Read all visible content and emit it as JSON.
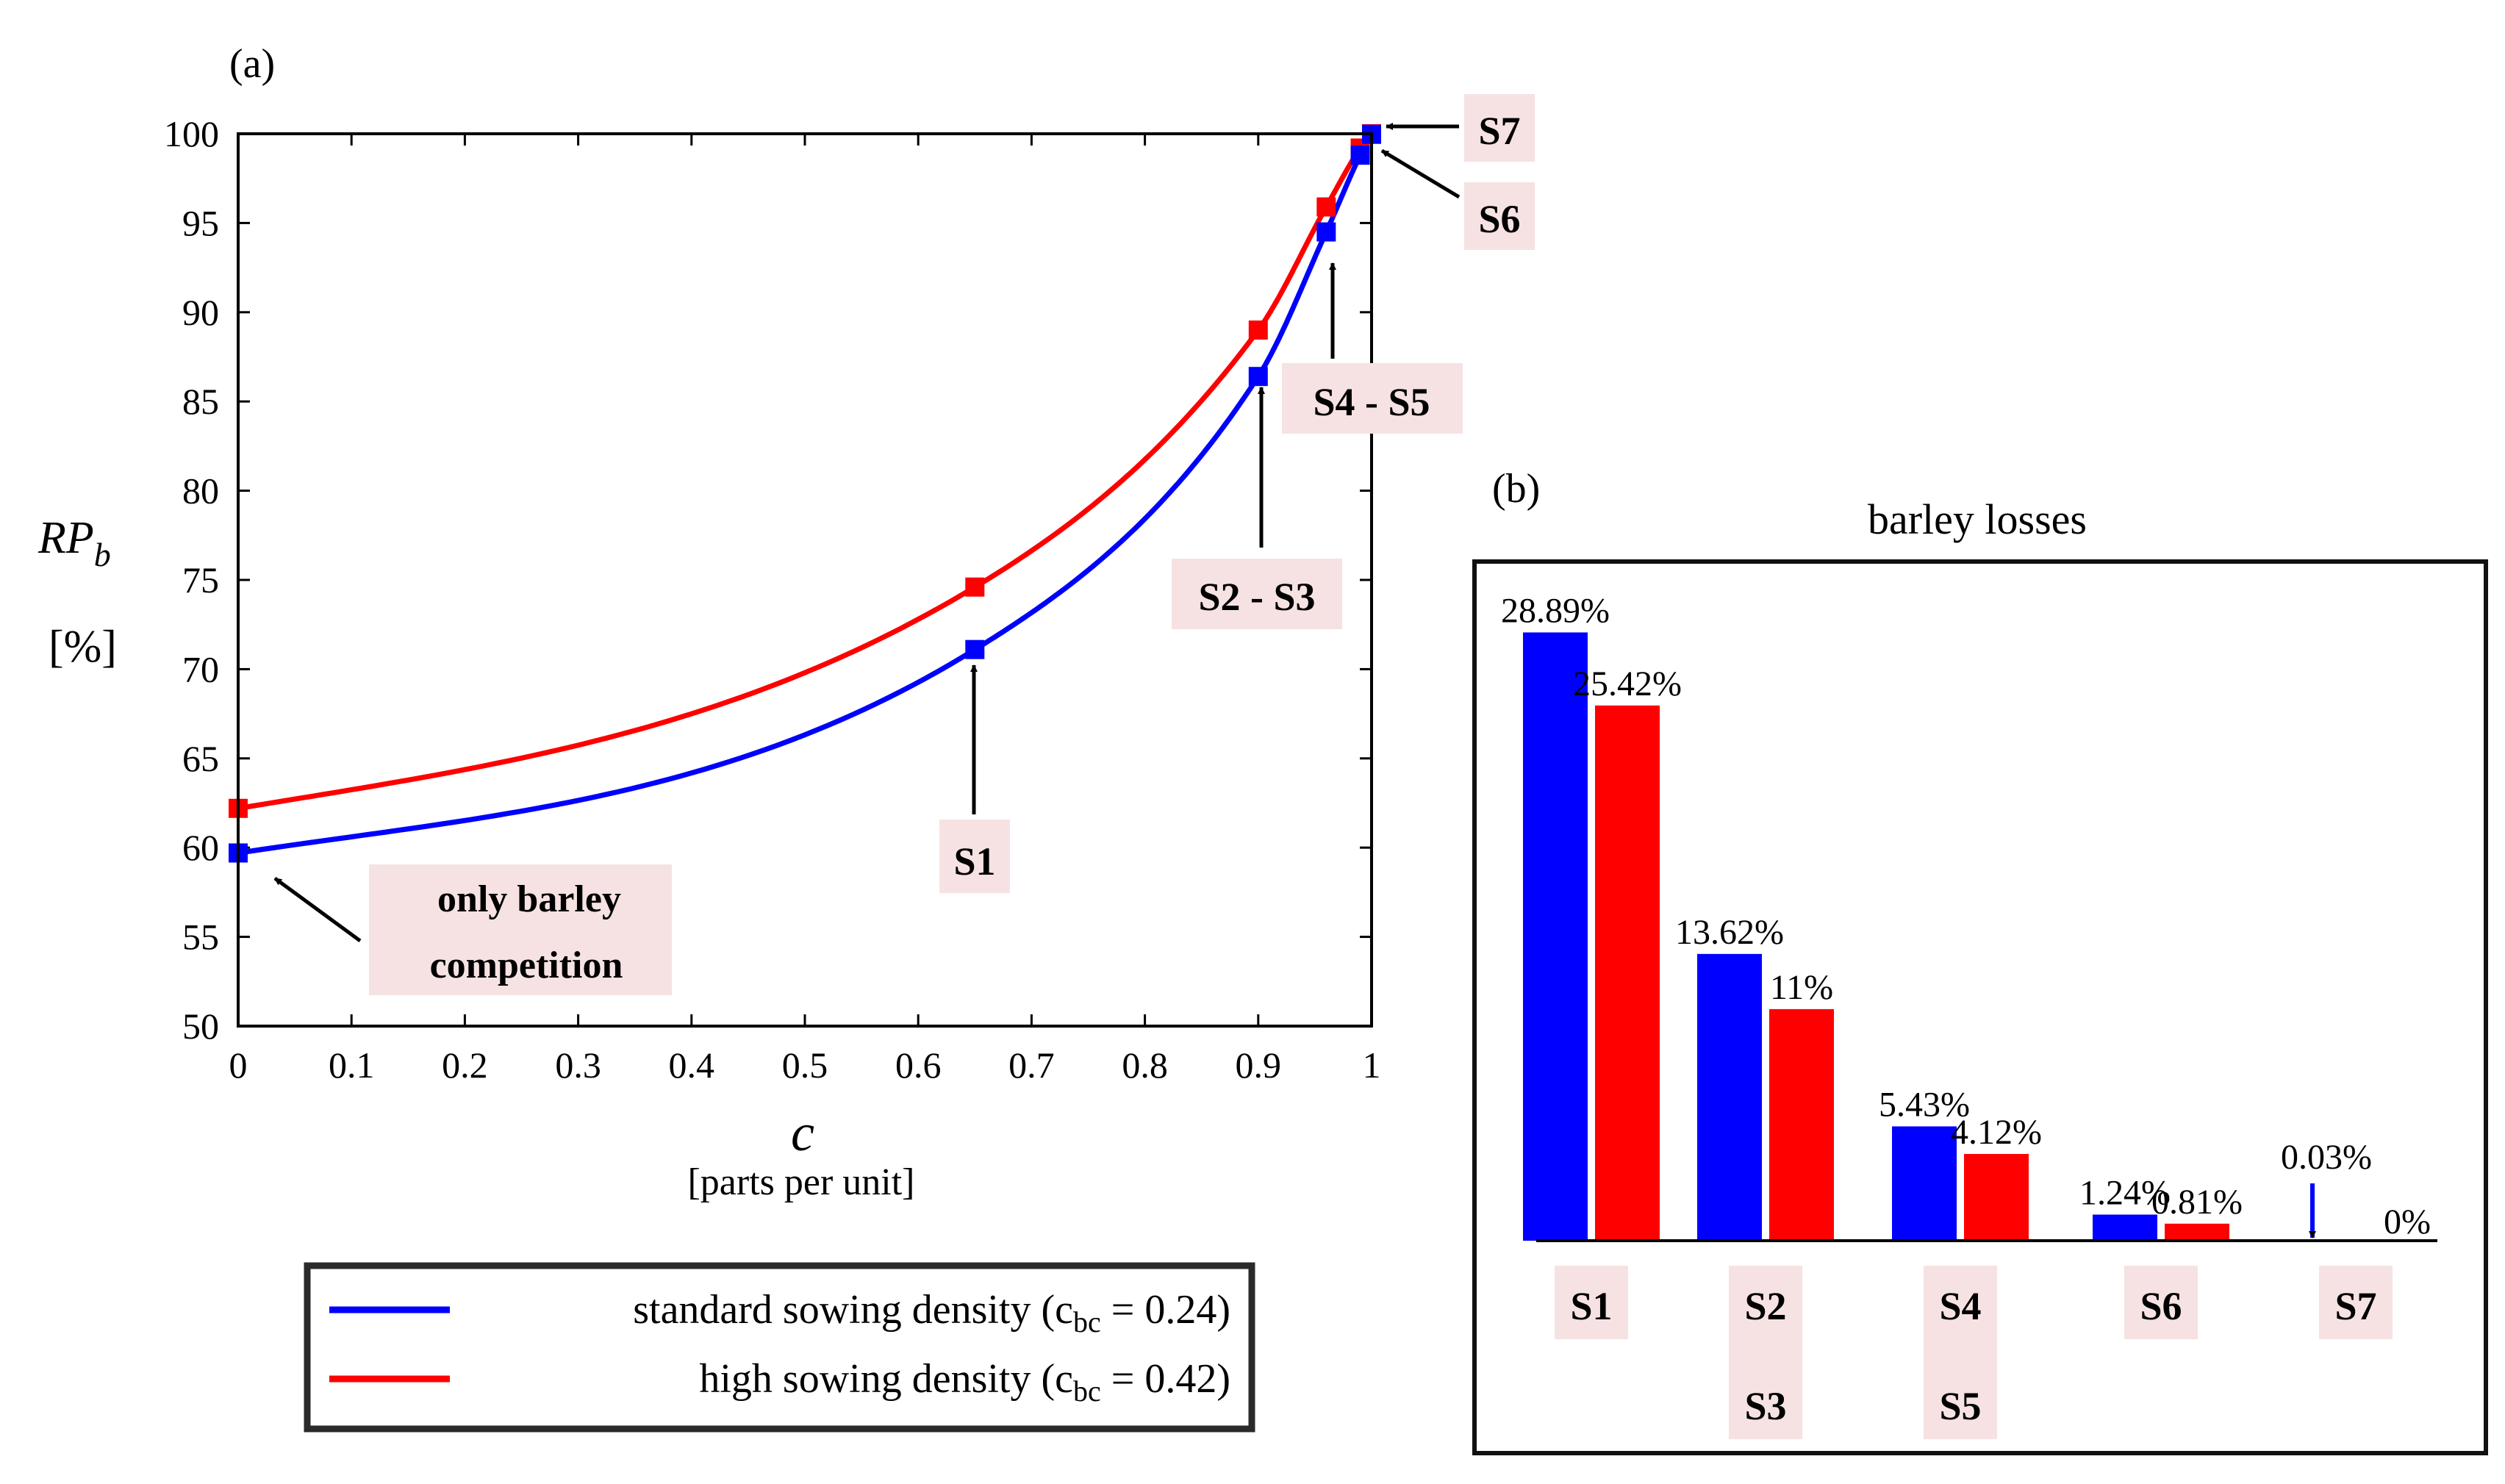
{
  "chart_data": [
    {
      "type": "line",
      "panel_label": "(a)",
      "xlabel": "c",
      "xlabel_unit": "[parts per unit]",
      "ylabel": "RP",
      "ylabel_sub": "b",
      "ylabel_unit": "[%]",
      "xlim": [
        0,
        1
      ],
      "ylim": [
        50,
        100
      ],
      "xticks": [
        0,
        0.1,
        0.2,
        0.3,
        0.4,
        0.5,
        0.6,
        0.7,
        0.8,
        0.9,
        1
      ],
      "xtick_labels": [
        "0",
        "0.1",
        "0.2",
        "0.3",
        "0.4",
        "0.5",
        "0.6",
        "0.7",
        "0.8",
        "0.9",
        "1"
      ],
      "yticks": [
        50,
        55,
        60,
        65,
        70,
        75,
        80,
        85,
        90,
        95,
        100
      ],
      "ytick_labels": [
        "50",
        "55",
        "60",
        "65",
        "70",
        "75",
        "80",
        "85",
        "90",
        "95",
        "100"
      ],
      "series": [
        {
          "name": "standard sowing density",
          "legend_text": "standard sowing density (c",
          "legend_sub": "bc",
          "legend_value": " = 0.24)",
          "c_bc": 0.24,
          "color": "#0000ff",
          "markers": [
            {
              "x": 0.0,
              "y": 59.7
            },
            {
              "x": 0.65,
              "y": 71.1
            },
            {
              "x": 0.9,
              "y": 86.4
            },
            {
              "x": 0.96,
              "y": 94.5
            },
            {
              "x": 0.99,
              "y": 98.8
            },
            {
              "x": 1.0,
              "y": 99.97
            }
          ]
        },
        {
          "name": "high sowing density",
          "legend_text": "high sowing density (c",
          "legend_sub": "bc",
          "legend_value": " = 0.42)",
          "c_bc": 0.42,
          "color": "#ff0000",
          "markers": [
            {
              "x": 0.0,
              "y": 62.2
            },
            {
              "x": 0.65,
              "y": 74.6
            },
            {
              "x": 0.9,
              "y": 89.0
            },
            {
              "x": 0.96,
              "y": 95.9
            },
            {
              "x": 0.99,
              "y": 99.2
            },
            {
              "x": 1.0,
              "y": 100.0
            }
          ]
        }
      ],
      "annotations": [
        {
          "text": [
            "only barley",
            "competition"
          ],
          "target": {
            "x": 0.0,
            "y": 59.7
          }
        },
        {
          "text": [
            "S1"
          ],
          "target": {
            "x": 0.65,
            "y": 71.1
          }
        },
        {
          "text": [
            "S2 - S3"
          ],
          "target": {
            "x": 0.9,
            "y": 86.4
          }
        },
        {
          "text": [
            "S4 - S5"
          ],
          "target": {
            "x": 0.96,
            "y": 94.5
          }
        },
        {
          "text": [
            "S6"
          ],
          "target": {
            "x": 0.99,
            "y": 98.8
          }
        },
        {
          "text": [
            "S7"
          ],
          "target": {
            "x": 1.0,
            "y": 100.0
          }
        }
      ]
    },
    {
      "type": "bar",
      "panel_label": "(b)",
      "title": "barley losses",
      "categories": [
        "S1",
        "S2\nS3",
        "S4\nS5",
        "S6",
        "S7"
      ],
      "category_labels": [
        [
          "S1"
        ],
        [
          "S2",
          "S3"
        ],
        [
          "S4",
          "S5"
        ],
        [
          "S6"
        ],
        [
          "S7"
        ]
      ],
      "series": [
        {
          "name": "standard sowing density",
          "color": "#0000ff",
          "values": [
            28.89,
            13.62,
            5.43,
            1.24,
            0.03
          ],
          "labels": [
            "28.89%",
            "13.62%",
            "5.43%",
            "1.24%",
            "0.03%"
          ]
        },
        {
          "name": "high sowing density",
          "color": "#ff0000",
          "values": [
            25.42,
            11,
            4.12,
            0.81,
            0
          ],
          "labels": [
            "25.42%",
            "11%",
            "4.12%",
            "0.81%",
            "0%"
          ]
        }
      ],
      "ylim": [
        0,
        31
      ]
    }
  ],
  "colors": {
    "standard": "#0000ff",
    "high": "#ff0000",
    "label_bg": "#f6e2e2"
  }
}
